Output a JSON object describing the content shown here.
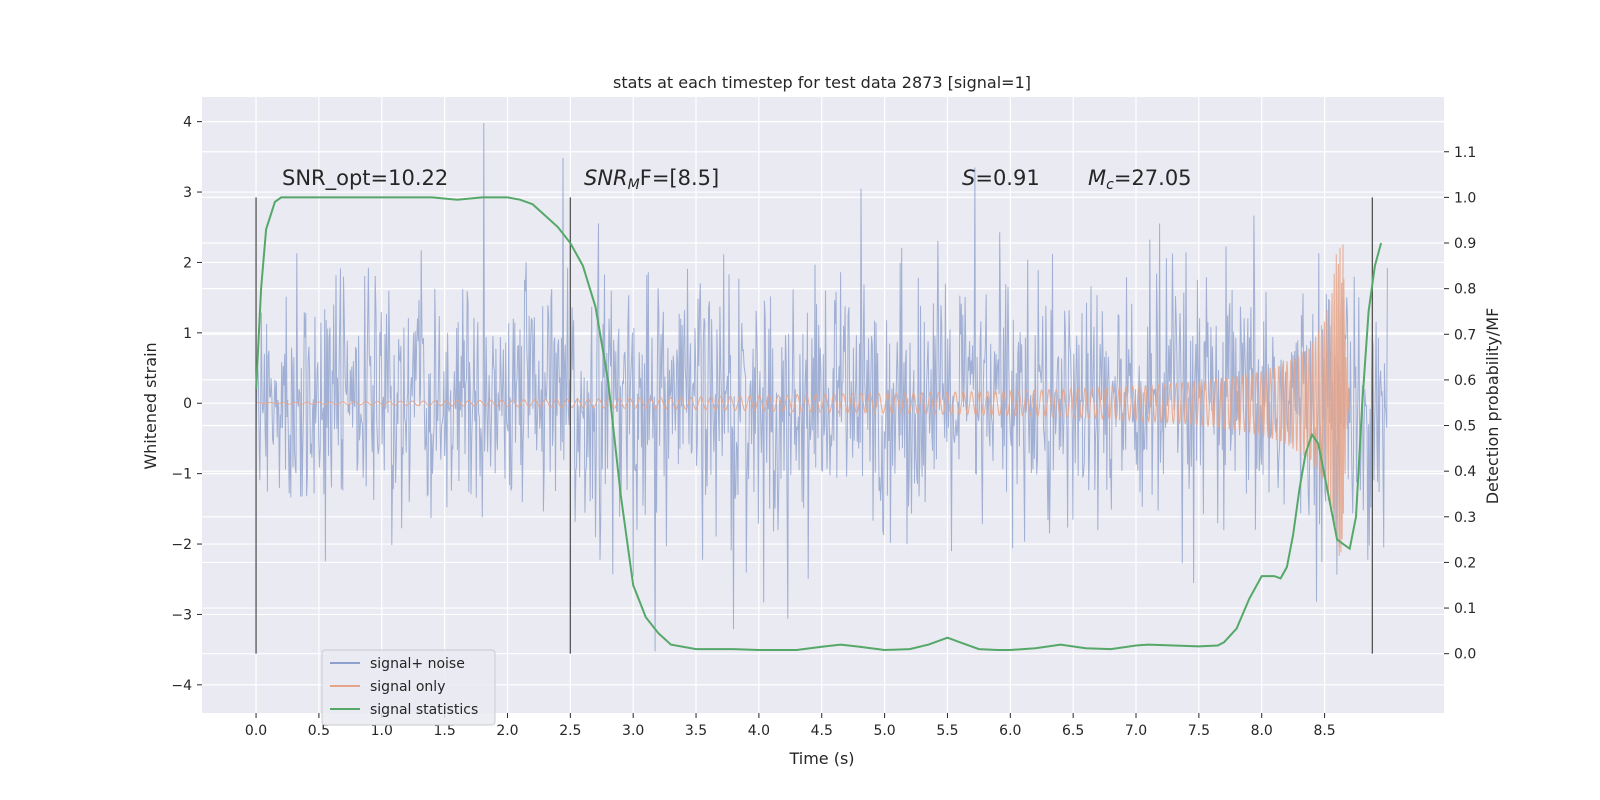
{
  "chart_data": {
    "type": "line",
    "title": "stats at each timestep for test data 2873 [signal=1]",
    "xlabel": "Time (s)",
    "ylabel": "Whitened strain",
    "y2label": "Detection probability/MF",
    "xlim": [
      -0.43,
      9.45
    ],
    "ylim": [
      -4.4,
      4.35
    ],
    "y2lim": [
      -0.13,
      1.22
    ],
    "xticks": [
      0.0,
      0.5,
      1.0,
      1.5,
      2.0,
      2.5,
      3.0,
      3.5,
      4.0,
      4.5,
      5.0,
      5.5,
      6.0,
      6.5,
      7.0,
      7.5,
      8.0,
      8.5
    ],
    "xtick_labels": [
      "0.0",
      "0.5",
      "1.0",
      "1.5",
      "2.0",
      "2.5",
      "3.0",
      "3.5",
      "4.0",
      "4.5",
      "5.0",
      "5.5",
      "6.0",
      "6.5",
      "7.0",
      "7.5",
      "8.0",
      "8.5"
    ],
    "yticks": [
      -4,
      -3,
      -2,
      -1,
      0,
      1,
      2,
      3,
      4
    ],
    "ytick_labels": [
      "−4",
      "−3",
      "−2",
      "−1",
      "0",
      "1",
      "2",
      "3",
      "4"
    ],
    "y2ticks": [
      0.0,
      0.1,
      0.2,
      0.3,
      0.4,
      0.5,
      0.6,
      0.7,
      0.8,
      0.9,
      1.0,
      1.1
    ],
    "y2tick_labels": [
      "0.0",
      "0.1",
      "0.2",
      "0.3",
      "0.4",
      "0.5",
      "0.6",
      "0.7",
      "0.8",
      "0.9",
      "1.0",
      "1.1"
    ],
    "grid": true,
    "legend_position": "lower-left",
    "vertical_markers": [
      0.0,
      2.5,
      8.88
    ],
    "annotations": {
      "snr_opt": "SNR_opt=10.22",
      "snr_mf_main": "SNR",
      "snr_mf_sub": "M",
      "snr_mf_rest": "F=[8.5]",
      "s_main": "S",
      "s_rest": "=0.91",
      "mc_main": "M",
      "mc_sub": "c",
      "mc_rest": "=27.05"
    },
    "series": [
      {
        "name": "signal+ noise",
        "color": "#8da0cb",
        "axis": "left",
        "x_range": [
          0.0,
          9.0
        ],
        "typical_amplitude": 1.2,
        "peak_max": 3.98,
        "peak_min": -4.0
      },
      {
        "name": "signal only",
        "color": "#e5a48a",
        "axis": "left",
        "x_range": [
          0.0,
          8.7
        ],
        "peak_max": 2.3,
        "peak_min": -2.5,
        "peak_time": 8.65
      },
      {
        "name": "signal statistics",
        "color": "#55a868",
        "axis": "right",
        "x": [
          0.0,
          0.04,
          0.08,
          0.15,
          0.2,
          0.3,
          0.5,
          0.8,
          1.0,
          1.2,
          1.4,
          1.6,
          1.8,
          1.9,
          2.0,
          2.1,
          2.2,
          2.3,
          2.4,
          2.5,
          2.6,
          2.7,
          2.8,
          2.9,
          2.95,
          3.0,
          3.1,
          3.2,
          3.3,
          3.5,
          3.8,
          4.0,
          4.3,
          4.5,
          4.65,
          4.8,
          5.0,
          5.2,
          5.35,
          5.5,
          5.6,
          5.75,
          5.9,
          6.0,
          6.2,
          6.4,
          6.6,
          6.8,
          7.0,
          7.1,
          7.3,
          7.5,
          7.65,
          7.7,
          7.8,
          7.9,
          8.0,
          8.1,
          8.15,
          8.2,
          8.25,
          8.3,
          8.35,
          8.4,
          8.45,
          8.5,
          8.55,
          8.6,
          8.65,
          8.7,
          8.75,
          8.8,
          8.85,
          8.9,
          8.95
        ],
        "y": [
          0.58,
          0.8,
          0.93,
          0.99,
          1.0,
          1.0,
          1.0,
          1.0,
          1.0,
          1.0,
          1.0,
          0.995,
          1.0,
          1.0,
          1.0,
          0.995,
          0.985,
          0.96,
          0.935,
          0.9,
          0.85,
          0.76,
          0.6,
          0.35,
          0.25,
          0.15,
          0.08,
          0.045,
          0.02,
          0.01,
          0.01,
          0.008,
          0.008,
          0.015,
          0.02,
          0.015,
          0.008,
          0.01,
          0.02,
          0.035,
          0.025,
          0.01,
          0.008,
          0.008,
          0.012,
          0.02,
          0.012,
          0.01,
          0.018,
          0.02,
          0.018,
          0.016,
          0.018,
          0.025,
          0.055,
          0.12,
          0.17,
          0.17,
          0.165,
          0.19,
          0.26,
          0.36,
          0.44,
          0.48,
          0.46,
          0.39,
          0.32,
          0.25,
          0.24,
          0.23,
          0.3,
          0.55,
          0.75,
          0.85,
          0.9
        ]
      }
    ]
  }
}
